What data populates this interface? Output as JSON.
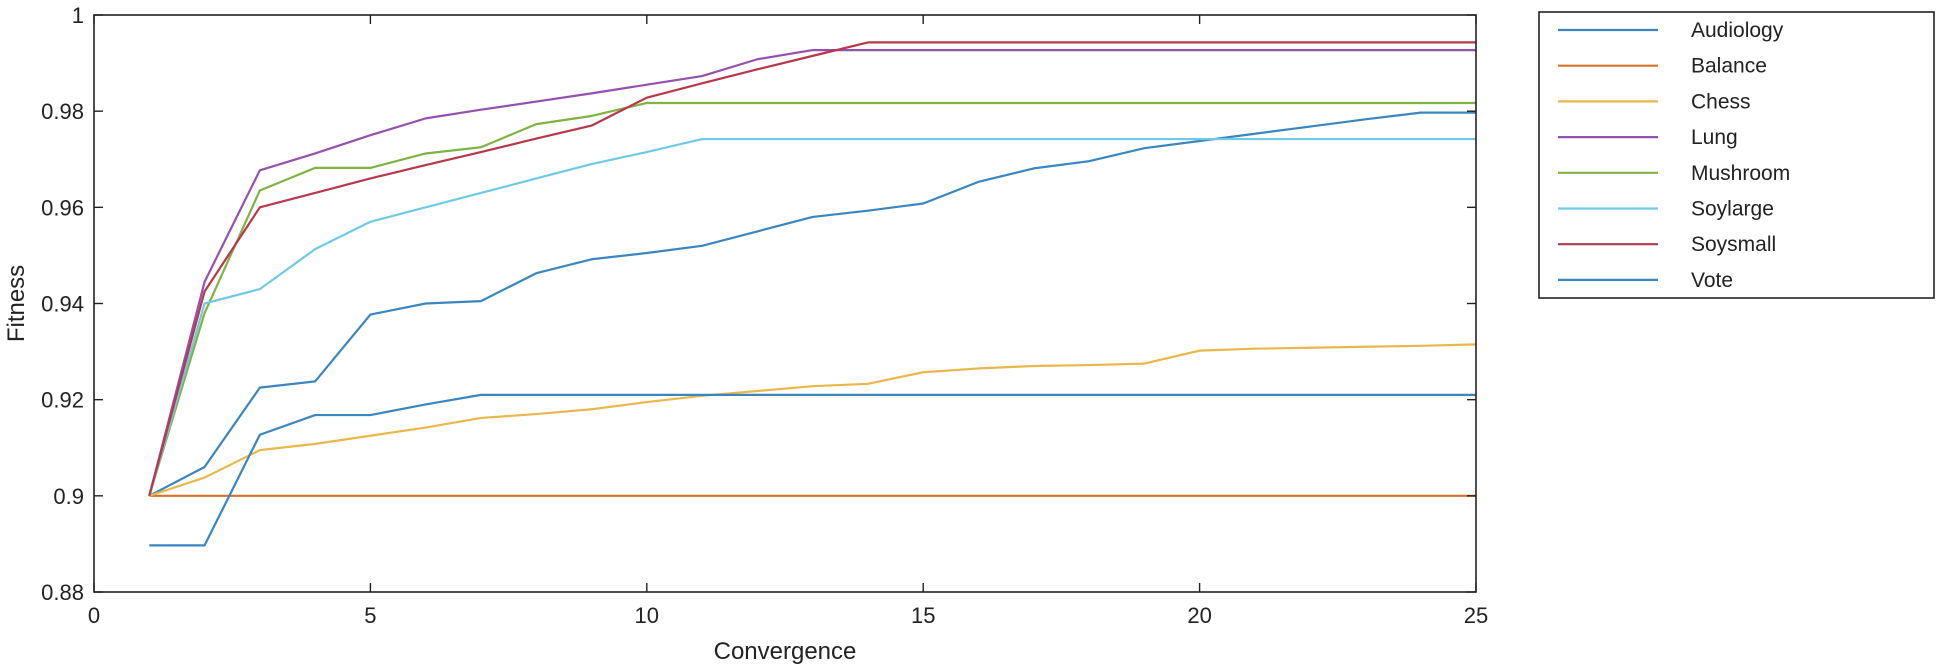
{
  "chart_data": {
    "type": "line",
    "title": "",
    "xlabel": "Convergence",
    "ylabel": "Fitness",
    "xlim": [
      0,
      25
    ],
    "ylim": [
      0.88,
      1
    ],
    "xticks": [
      0,
      5,
      10,
      15,
      20,
      25
    ],
    "xtick_labels": [
      "0",
      "5",
      "10",
      "15",
      "20",
      "25"
    ],
    "yticks": [
      0.88,
      0.9,
      0.92,
      0.94,
      0.96,
      0.98,
      1
    ],
    "ytick_labels": [
      "0.88",
      "0.9",
      "0.92",
      "0.94",
      "0.96",
      "0.98",
      "1"
    ],
    "grid": false,
    "legend_position": "outside-top-right",
    "x": [
      1,
      2,
      3,
      4,
      5,
      6,
      7,
      8,
      9,
      10,
      11,
      12,
      13,
      14,
      15,
      16,
      17,
      18,
      19,
      20,
      21,
      22,
      23,
      24,
      25
    ],
    "series": [
      {
        "name": "Audiology",
        "color": "#3a86c0",
        "values": [
          0.9,
          0.906,
          0.9225,
          0.9238,
          0.9377,
          0.94,
          0.9405,
          0.9463,
          0.9492,
          0.9505,
          0.952,
          0.955,
          0.958,
          0.9593,
          0.9608,
          0.9653,
          0.9681,
          0.9696,
          0.9723,
          0.9738,
          0.9753,
          0.9768,
          0.9783,
          0.9797,
          0.9797
        ]
      },
      {
        "name": "Balance",
        "color": "#d9702e",
        "values": [
          0.9,
          0.9,
          0.9,
          0.9,
          0.9,
          0.9,
          0.9,
          0.9,
          0.9,
          0.9,
          0.9,
          0.9,
          0.9,
          0.9,
          0.9,
          0.9,
          0.9,
          0.9,
          0.9,
          0.9,
          0.9,
          0.9,
          0.9,
          0.9,
          0.9
        ]
      },
      {
        "name": "Chess",
        "color": "#eab84a",
        "values": [
          0.9,
          0.9038,
          0.9095,
          0.9108,
          0.9125,
          0.9142,
          0.9162,
          0.917,
          0.918,
          0.9195,
          0.9208,
          0.9218,
          0.9228,
          0.9233,
          0.9257,
          0.9265,
          0.927,
          0.9272,
          0.9275,
          0.9302,
          0.9306,
          0.9308,
          0.931,
          0.9312,
          0.9315
        ]
      },
      {
        "name": "Lung",
        "color": "#9650b0",
        "values": [
          0.9,
          0.9445,
          0.9677,
          0.9712,
          0.975,
          0.9785,
          0.9803,
          0.982,
          0.9837,
          0.9855,
          0.9873,
          0.9908,
          0.9927,
          0.9927,
          0.9927,
          0.9927,
          0.9927,
          0.9927,
          0.9927,
          0.9927,
          0.9927,
          0.9927,
          0.9927,
          0.9927,
          0.9927
        ]
      },
      {
        "name": "Mushroom",
        "color": "#7fb445",
        "values": [
          0.9,
          0.938,
          0.9635,
          0.9682,
          0.9682,
          0.9712,
          0.9725,
          0.9773,
          0.979,
          0.9817,
          0.9817,
          0.9817,
          0.9817,
          0.9817,
          0.9817,
          0.9817,
          0.9817,
          0.9817,
          0.9817,
          0.9817,
          0.9817,
          0.9817,
          0.9817,
          0.9817,
          0.9817
        ]
      },
      {
        "name": "Soylarge",
        "color": "#6fcae8",
        "values": [
          0.9,
          0.94,
          0.943,
          0.9513,
          0.957,
          0.96,
          0.963,
          0.966,
          0.969,
          0.9715,
          0.9742,
          0.9742,
          0.9742,
          0.9742,
          0.9742,
          0.9742,
          0.9742,
          0.9742,
          0.9742,
          0.9742,
          0.9742,
          0.9742,
          0.9742,
          0.9742,
          0.9742
        ]
      },
      {
        "name": "Soysmall",
        "color": "#b8384a",
        "values": [
          0.9,
          0.9425,
          0.96,
          0.963,
          0.966,
          0.9688,
          0.9715,
          0.9743,
          0.977,
          0.9828,
          0.9858,
          0.9887,
          0.9915,
          0.9943,
          0.9943,
          0.9943,
          0.9943,
          0.9943,
          0.9943,
          0.9943,
          0.9943,
          0.9943,
          0.9943,
          0.9943,
          0.9943
        ]
      },
      {
        "name": "Vote",
        "color": "#3a86c0",
        "values": [
          0.8897,
          0.8897,
          0.9127,
          0.9168,
          0.9168,
          0.919,
          0.921,
          0.921,
          0.921,
          0.921,
          0.921,
          0.921,
          0.921,
          0.921,
          0.921,
          0.921,
          0.921,
          0.921,
          0.921,
          0.921,
          0.921,
          0.921,
          0.921,
          0.921,
          0.921
        ]
      }
    ]
  }
}
